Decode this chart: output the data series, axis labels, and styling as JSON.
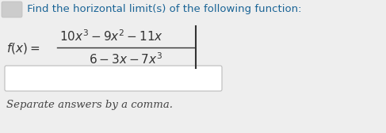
{
  "bg_color": "#eeeeee",
  "title_text": " Find the horizontal limit(s) of the following function:",
  "title_color": "#1a6496",
  "title_fontsize": 9.5,
  "fx_color": "#333333",
  "math_fontsize": 11.0,
  "input_box_color": "#ffffff",
  "input_box_border": "#bbbbbb",
  "note_text": "Separate answers by a comma.",
  "note_fontsize": 9.5,
  "note_color": "#444444",
  "icon_color": "#cccccc"
}
